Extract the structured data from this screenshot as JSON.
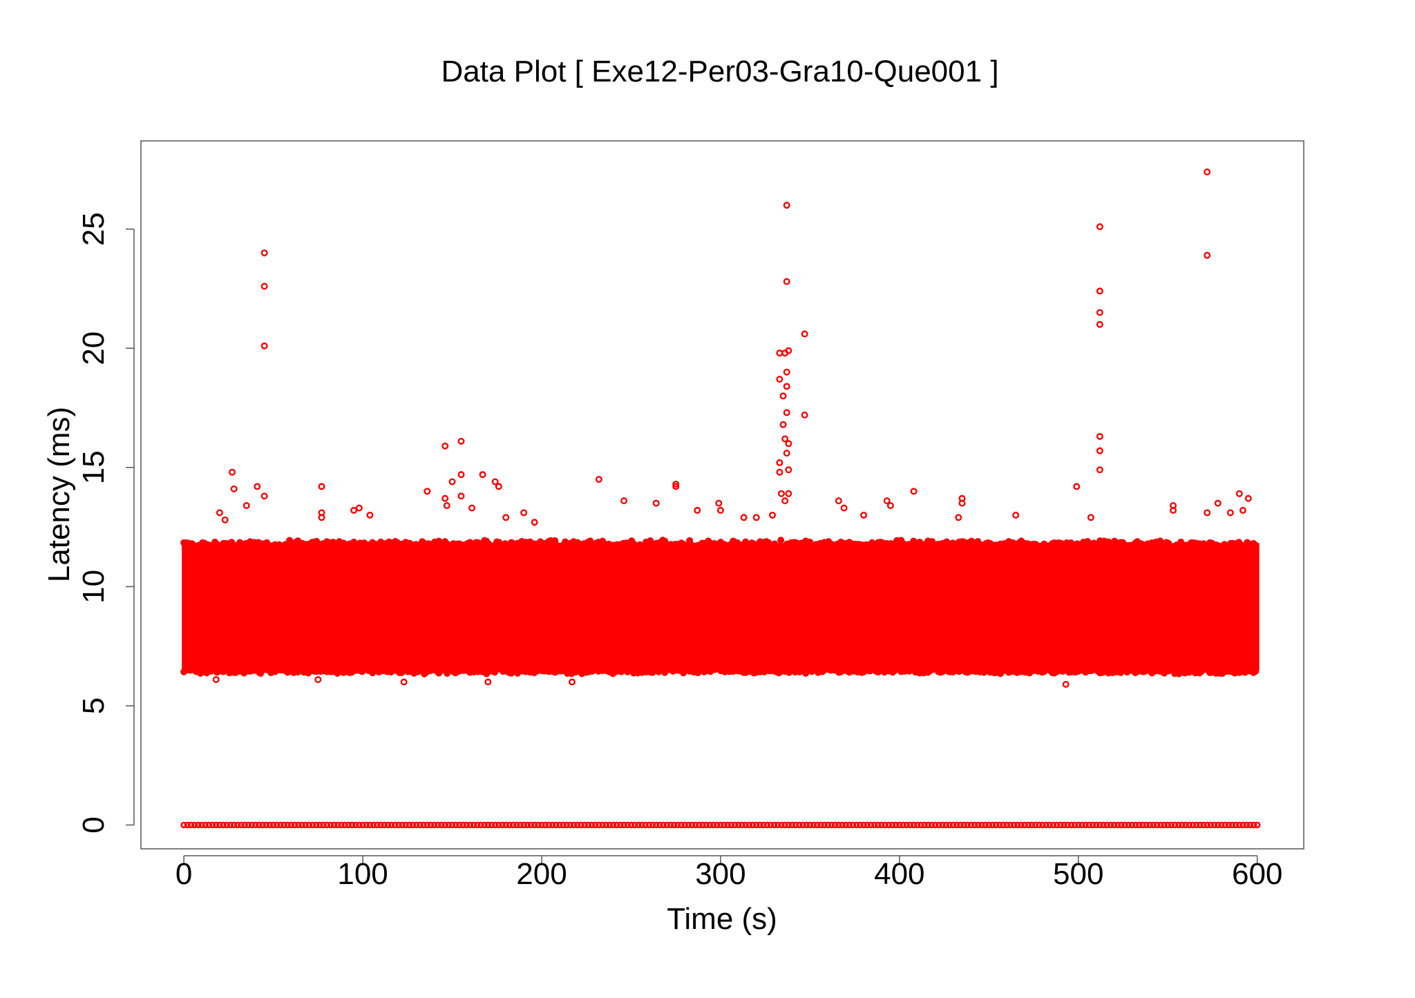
{
  "chart_data": {
    "type": "scatter",
    "title": "Data Plot [ Exe12-Per03-Gra10-Que001 ]",
    "xlabel": "Time (s)",
    "ylabel": "Latency (ms)",
    "xlim": [
      -24,
      626
    ],
    "ylim": [
      -1,
      28.7
    ],
    "xticks": [
      0,
      100,
      200,
      300,
      400,
      500,
      600
    ],
    "yticks": [
      0,
      5,
      10,
      15,
      20,
      25
    ],
    "xtick_labels": [
      "0",
      "100",
      "200",
      "300",
      "400",
      "500",
      "600"
    ],
    "ytick_labels": [
      "0",
      "5",
      "10",
      "15",
      "20",
      "25"
    ],
    "grid": false,
    "legend": "none",
    "marker": "open-circle",
    "color": "#ff0000",
    "series": [
      {
        "zero_band": {
          "x_range": [
            0,
            600
          ],
          "y": 0
        },
        "dense_band": {
          "x_range": [
            0,
            600
          ],
          "y_range": [
            6.3,
            12.0
          ]
        },
        "points": [
          {
            "x": 45,
            "y": 24.0
          },
          {
            "x": 45,
            "y": 22.6
          },
          {
            "x": 45,
            "y": 20.1
          },
          {
            "x": 27,
            "y": 14.8
          },
          {
            "x": 28,
            "y": 14.1
          },
          {
            "x": 41,
            "y": 14.2
          },
          {
            "x": 45,
            "y": 13.8
          },
          {
            "x": 20,
            "y": 13.1
          },
          {
            "x": 23,
            "y": 12.8
          },
          {
            "x": 35,
            "y": 13.4
          },
          {
            "x": 77,
            "y": 14.2
          },
          {
            "x": 77,
            "y": 13.1
          },
          {
            "x": 77,
            "y": 12.9
          },
          {
            "x": 95,
            "y": 13.2
          },
          {
            "x": 98,
            "y": 13.3
          },
          {
            "x": 104,
            "y": 13.0
          },
          {
            "x": 136,
            "y": 14.0
          },
          {
            "x": 146,
            "y": 15.9
          },
          {
            "x": 146,
            "y": 13.7
          },
          {
            "x": 147,
            "y": 13.4
          },
          {
            "x": 150,
            "y": 14.4
          },
          {
            "x": 155,
            "y": 16.1
          },
          {
            "x": 155,
            "y": 14.7
          },
          {
            "x": 155,
            "y": 13.8
          },
          {
            "x": 161,
            "y": 13.3
          },
          {
            "x": 167,
            "y": 14.7
          },
          {
            "x": 174,
            "y": 14.4
          },
          {
            "x": 176,
            "y": 14.2
          },
          {
            "x": 180,
            "y": 12.9
          },
          {
            "x": 190,
            "y": 13.1
          },
          {
            "x": 196,
            "y": 12.7
          },
          {
            "x": 232,
            "y": 14.5
          },
          {
            "x": 246,
            "y": 13.6
          },
          {
            "x": 264,
            "y": 13.5
          },
          {
            "x": 275,
            "y": 14.3
          },
          {
            "x": 275,
            "y": 14.2
          },
          {
            "x": 287,
            "y": 13.2
          },
          {
            "x": 299,
            "y": 13.5
          },
          {
            "x": 300,
            "y": 13.2
          },
          {
            "x": 313,
            "y": 12.9
          },
          {
            "x": 320,
            "y": 12.9
          },
          {
            "x": 329,
            "y": 13.0
          },
          {
            "x": 333,
            "y": 19.8
          },
          {
            "x": 333,
            "y": 18.7
          },
          {
            "x": 333,
            "y": 15.2
          },
          {
            "x": 333,
            "y": 14.8
          },
          {
            "x": 334,
            "y": 13.9
          },
          {
            "x": 335,
            "y": 16.8
          },
          {
            "x": 335,
            "y": 18.0
          },
          {
            "x": 336,
            "y": 19.8
          },
          {
            "x": 336,
            "y": 16.2
          },
          {
            "x": 337,
            "y": 26.0
          },
          {
            "x": 337,
            "y": 22.8
          },
          {
            "x": 337,
            "y": 19.0
          },
          {
            "x": 337,
            "y": 18.4
          },
          {
            "x": 337,
            "y": 17.3
          },
          {
            "x": 337,
            "y": 15.6
          },
          {
            "x": 338,
            "y": 19.9
          },
          {
            "x": 338,
            "y": 16.0
          },
          {
            "x": 338,
            "y": 14.9
          },
          {
            "x": 338,
            "y": 13.9
          },
          {
            "x": 336,
            "y": 13.6
          },
          {
            "x": 347,
            "y": 20.6
          },
          {
            "x": 347,
            "y": 17.2
          },
          {
            "x": 366,
            "y": 13.6
          },
          {
            "x": 369,
            "y": 13.3
          },
          {
            "x": 380,
            "y": 13.0
          },
          {
            "x": 393,
            "y": 13.6
          },
          {
            "x": 395,
            "y": 13.4
          },
          {
            "x": 408,
            "y": 14.0
          },
          {
            "x": 435,
            "y": 13.7
          },
          {
            "x": 435,
            "y": 13.5
          },
          {
            "x": 433,
            "y": 12.9
          },
          {
            "x": 465,
            "y": 13.0
          },
          {
            "x": 499,
            "y": 14.2
          },
          {
            "x": 507,
            "y": 12.9
          },
          {
            "x": 512,
            "y": 25.1
          },
          {
            "x": 512,
            "y": 22.4
          },
          {
            "x": 512,
            "y": 21.5
          },
          {
            "x": 512,
            "y": 21.0
          },
          {
            "x": 512,
            "y": 16.3
          },
          {
            "x": 512,
            "y": 15.7
          },
          {
            "x": 512,
            "y": 14.9
          },
          {
            "x": 493,
            "y": 5.9
          },
          {
            "x": 553,
            "y": 13.4
          },
          {
            "x": 553,
            "y": 13.2
          },
          {
            "x": 572,
            "y": 27.4
          },
          {
            "x": 572,
            "y": 23.9
          },
          {
            "x": 572,
            "y": 13.1
          },
          {
            "x": 578,
            "y": 13.5
          },
          {
            "x": 585,
            "y": 13.1
          },
          {
            "x": 590,
            "y": 13.9
          },
          {
            "x": 592,
            "y": 13.2
          },
          {
            "x": 595,
            "y": 13.7
          },
          {
            "x": 170,
            "y": 6.0
          },
          {
            "x": 217,
            "y": 6.0
          },
          {
            "x": 123,
            "y": 6.0
          },
          {
            "x": 75,
            "y": 6.1
          },
          {
            "x": 18,
            "y": 6.1
          }
        ]
      }
    ]
  }
}
